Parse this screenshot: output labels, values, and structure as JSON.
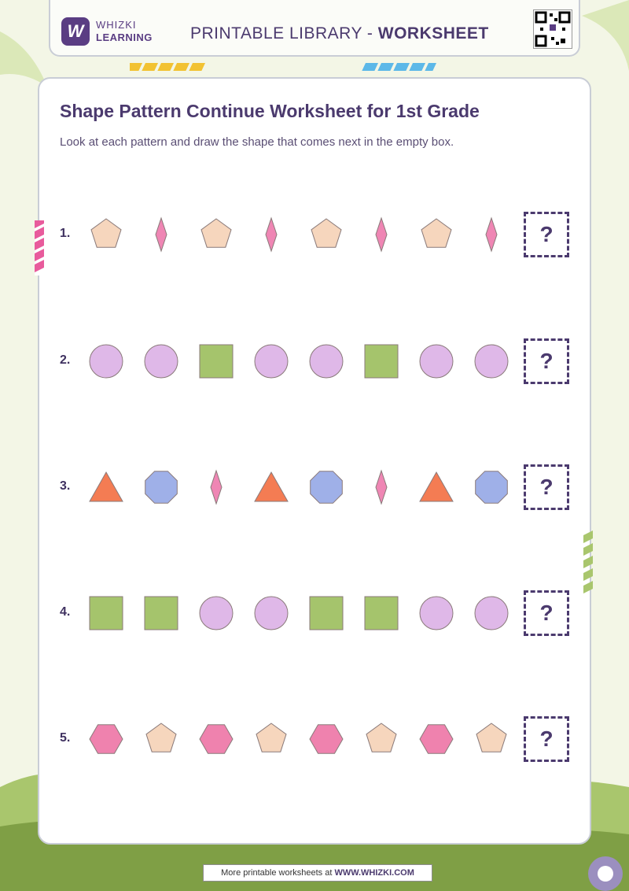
{
  "header": {
    "brand_line1": "WHIZKI",
    "brand_line2": "LEARNING",
    "logo_letter": "W",
    "title_prefix": "PRINTABLE LIBRARY - ",
    "title_bold": "WORKSHEET"
  },
  "worksheet": {
    "title": "Shape Pattern Continue Worksheet for 1st Grade",
    "instructions": "Look at each pattern and draw the shape that comes next in the empty box.",
    "answer_placeholder": "?",
    "rows": [
      {
        "number": "1.",
        "shapes": [
          "pentagon",
          "diamond",
          "pentagon",
          "diamond",
          "pentagon",
          "diamond",
          "pentagon",
          "diamond"
        ]
      },
      {
        "number": "2.",
        "shapes": [
          "circle",
          "circle",
          "square",
          "circle",
          "circle",
          "square",
          "circle",
          "circle"
        ]
      },
      {
        "number": "3.",
        "shapes": [
          "triangle",
          "octagon",
          "diamond",
          "triangle",
          "octagon",
          "diamond",
          "triangle",
          "octagon"
        ]
      },
      {
        "number": "4.",
        "shapes": [
          "square",
          "square",
          "circle",
          "circle",
          "square",
          "square",
          "circle",
          "circle"
        ]
      },
      {
        "number": "5.",
        "shapes": [
          "hexagon",
          "pentagon",
          "hexagon",
          "pentagon",
          "hexagon",
          "pentagon",
          "hexagon",
          "pentagon"
        ]
      }
    ]
  },
  "shape_colors": {
    "pentagon": "#f6d6bd",
    "diamond": "#ef86b4",
    "circle": "#dfb8e8",
    "square": "#a5c46c",
    "triangle": "#f47c53",
    "octagon": "#9fb0e8",
    "hexagon": "#ef82ae"
  },
  "footer": {
    "text": "More printable worksheets at ",
    "link": "WWW.WHIZKI.COM"
  }
}
